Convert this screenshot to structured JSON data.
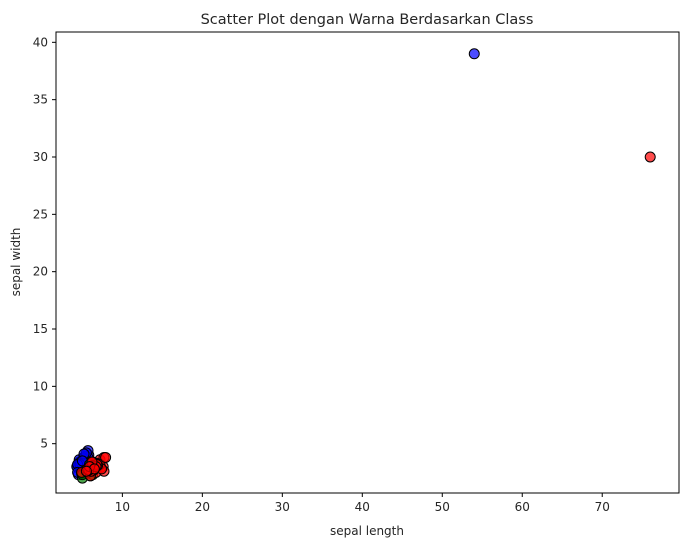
{
  "chart_data": {
    "type": "scatter",
    "title": "Scatter Plot dengan Warna Berdasarkan Class",
    "xlabel": "sepal length",
    "ylabel": "sepal width",
    "xlim": [
      1.7,
      79.6
    ],
    "ylim": [
      0.7,
      40.9
    ],
    "xticks": [
      10,
      20,
      30,
      40,
      50,
      60,
      70
    ],
    "yticks": [
      5,
      10,
      15,
      20,
      25,
      30,
      35,
      40
    ],
    "grid": false,
    "series": [
      {
        "color": "#0000ff",
        "points": [
          [
            5.1,
            3.5
          ],
          [
            4.9,
            3.0
          ],
          [
            4.7,
            3.2
          ],
          [
            4.6,
            3.1
          ],
          [
            5.0,
            3.6
          ],
          [
            5.4,
            3.9
          ],
          [
            4.6,
            3.4
          ],
          [
            5.0,
            3.4
          ],
          [
            4.4,
            2.9
          ],
          [
            4.9,
            3.1
          ],
          [
            5.4,
            3.7
          ],
          [
            4.8,
            3.4
          ],
          [
            4.8,
            3.0
          ],
          [
            4.3,
            3.0
          ],
          [
            5.8,
            4.0
          ],
          [
            5.7,
            4.4
          ],
          [
            5.4,
            3.9
          ],
          [
            5.1,
            3.5
          ],
          [
            5.7,
            3.8
          ],
          [
            5.1,
            3.8
          ],
          [
            5.4,
            3.4
          ],
          [
            5.1,
            3.7
          ],
          [
            4.6,
            3.6
          ],
          [
            5.1,
            3.3
          ],
          [
            4.8,
            3.4
          ],
          [
            5.0,
            3.0
          ],
          [
            5.2,
            3.5
          ],
          [
            5.2,
            3.4
          ],
          [
            4.7,
            3.2
          ],
          [
            5.5,
            4.2
          ],
          [
            5.2,
            4.1
          ],
          [
            4.4,
            3.2
          ],
          [
            5.0,
            3.5
          ],
          [
            4.5,
            2.3
          ],
          [
            4.4,
            2.5
          ],
          [
            54,
            39
          ]
        ]
      },
      {
        "color": "#008000",
        "points": [
          [
            5.0,
            2.0
          ],
          [
            5.7,
            2.6
          ],
          [
            6.0,
            2.2
          ],
          [
            5.5,
            2.4
          ],
          [
            5.8,
            2.7
          ],
          [
            5.6,
            2.5
          ],
          [
            4.9,
            2.4
          ],
          [
            5.0,
            2.3
          ],
          [
            6.3,
            2.3
          ],
          [
            5.7,
            2.8
          ],
          [
            6.2,
            2.9
          ],
          [
            5.5,
            2.6
          ],
          [
            6.1,
            2.8
          ],
          [
            6.7,
            3.1
          ],
          [
            6.6,
            2.9
          ],
          [
            5.9,
            3.2
          ]
        ]
      },
      {
        "color": "#ff0000",
        "points": [
          [
            6.3,
            3.3
          ],
          [
            5.8,
            2.7
          ],
          [
            7.1,
            3.0
          ],
          [
            6.3,
            2.9
          ],
          [
            6.5,
            3.0
          ],
          [
            7.6,
            3.0
          ],
          [
            4.9,
            2.5
          ],
          [
            7.3,
            2.9
          ],
          [
            6.7,
            2.5
          ],
          [
            7.2,
            3.6
          ],
          [
            6.5,
            3.2
          ],
          [
            6.4,
            2.7
          ],
          [
            6.8,
            3.0
          ],
          [
            5.7,
            2.5
          ],
          [
            5.8,
            2.8
          ],
          [
            6.4,
            3.2
          ],
          [
            7.7,
            3.8
          ],
          [
            7.7,
            2.6
          ],
          [
            6.0,
            2.2
          ],
          [
            6.9,
            3.2
          ],
          [
            5.6,
            2.8
          ],
          [
            6.7,
            3.3
          ],
          [
            6.2,
            2.8
          ],
          [
            6.1,
            3.0
          ],
          [
            7.2,
            3.2
          ],
          [
            7.4,
            2.8
          ],
          [
            7.9,
            3.8
          ],
          [
            6.3,
            2.8
          ],
          [
            6.1,
            2.6
          ],
          [
            6.3,
            3.4
          ],
          [
            6.4,
            3.1
          ],
          [
            6.0,
            3.0
          ],
          [
            6.9,
            3.1
          ],
          [
            5.8,
            2.7
          ],
          [
            6.8,
            3.2
          ],
          [
            6.7,
            3.0
          ],
          [
            6.2,
            3.4
          ],
          [
            5.9,
            3.0
          ],
          [
            6.5,
            2.8
          ],
          [
            5.5,
            2.6
          ],
          [
            76,
            30
          ]
        ]
      }
    ]
  }
}
